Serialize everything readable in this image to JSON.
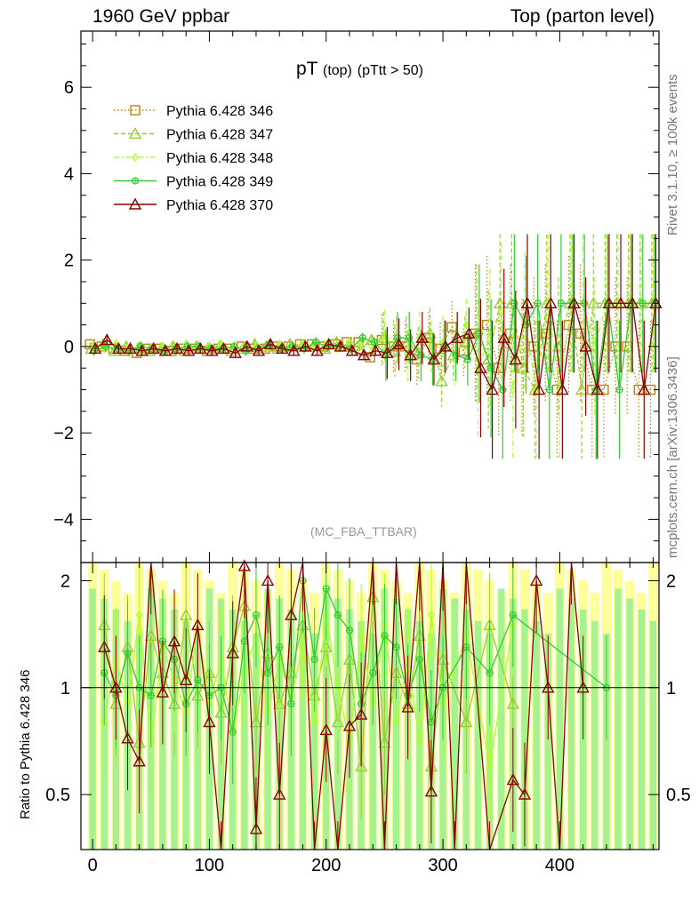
{
  "header": {
    "title_left": "1960 GeV ppbar",
    "title_right": "Top (parton level)",
    "plot_title_main": "pT",
    "plot_title_sub1": "(top)",
    "plot_title_sub2": "(pTtt > 50)",
    "reference_label": "(MC_FBA_TTBAR)",
    "side_label_top": "Rivet 3.1.10, ≥ 100k events",
    "side_label_bottom": "mcplots.cern.ch [arXiv:1306.3436]",
    "ratio_ylabel": "Ratio to Pythia 6.428 346"
  },
  "chart_data": [
    {
      "type": "line",
      "panel": "main",
      "title": "pT (top) (pTtt > 50)",
      "xlabel": "",
      "ylabel": "",
      "xlim": [
        -10,
        485
      ],
      "ylim": [
        -5,
        7.3
      ],
      "yticks": [
        -4,
        -2,
        0,
        2,
        4,
        6
      ],
      "xticks": [
        0,
        100,
        200,
        300,
        400
      ],
      "legend_position": "top-left",
      "series": [
        {
          "name": "Pythia 6.428 346",
          "color": "#b8860b",
          "marker": "square",
          "line": "dotted",
          "x": [
            0,
            10,
            20,
            30,
            40,
            50,
            60,
            70,
            80,
            90,
            100,
            110,
            120,
            130,
            140,
            150,
            160,
            170,
            180,
            190,
            200,
            210,
            220,
            230,
            240,
            250,
            260,
            270,
            280,
            290,
            300,
            310,
            320,
            330,
            340,
            350,
            360,
            370,
            380,
            390,
            400,
            410,
            420,
            430,
            440,
            450,
            460,
            470,
            480
          ],
          "y": [
            0.05,
            0.0,
            -0.05,
            -0.1,
            -0.15,
            -0.05,
            -0.05,
            -0.1,
            -0.05,
            -0.05,
            -0.1,
            -0.05,
            -0.05,
            0.0,
            -0.05,
            -0.05,
            0.0,
            0.0,
            0.05,
            0.05,
            0.0,
            0.05,
            0.1,
            0.1,
            -0.25,
            0.15,
            0.0,
            0.0,
            -0.3,
            0.2,
            -0.05,
            0.45,
            -0.1,
            0.3,
            0.5,
            -0.5,
            0.3,
            -0.5,
            0.0,
            0.3,
            -1.0,
            0.5,
            0.3,
            -1.0,
            -1.0,
            0.0,
            0.0,
            -1.0,
            -1.0
          ]
        },
        {
          "name": "Pythia 6.428 347",
          "color": "#9acd32",
          "marker": "triangle",
          "line": "dashed",
          "x": [
            0,
            10,
            20,
            30,
            40,
            50,
            60,
            70,
            80,
            90,
            100,
            110,
            120,
            130,
            140,
            150,
            160,
            170,
            180,
            190,
            200,
            210,
            220,
            230,
            240,
            250,
            260,
            270,
            280,
            290,
            300,
            310,
            320,
            330,
            340,
            350,
            360,
            370,
            380,
            390,
            400,
            410,
            420,
            430,
            440,
            450,
            460,
            470,
            480
          ],
          "y": [
            -0.05,
            0.05,
            -0.1,
            0.0,
            -0.05,
            -0.1,
            -0.05,
            0.0,
            -0.1,
            0.0,
            -0.05,
            0.0,
            -0.1,
            -0.05,
            0.05,
            0.0,
            -0.05,
            0.05,
            0.0,
            0.0,
            -0.05,
            0.1,
            0.0,
            -0.1,
            0.15,
            0.2,
            -0.1,
            0.1,
            -0.15,
            0.3,
            -0.8,
            -0.2,
            0.1,
            0.3,
            -0.3,
            1.0,
            1.0,
            -0.5,
            -1.0,
            1.0,
            0.0,
            1.0,
            -1.0,
            1.0,
            1.0,
            1.0,
            1.0,
            1.0,
            1.0
          ]
        },
        {
          "name": "Pythia 6.428 348",
          "color": "#adff2f",
          "marker": "diamond",
          "line": "dashdot",
          "x": [
            0,
            10,
            20,
            30,
            40,
            50,
            60,
            70,
            80,
            90,
            100,
            110,
            120,
            130,
            140,
            150,
            160,
            170,
            180,
            190,
            200,
            210,
            220,
            230,
            240,
            250,
            260,
            270,
            280,
            290,
            300,
            310,
            320,
            330,
            340,
            350,
            360,
            370,
            380,
            390,
            400,
            410,
            420,
            430,
            440,
            450,
            460,
            470,
            480
          ],
          "y": [
            0.0,
            -0.05,
            0.05,
            -0.05,
            0.0,
            -0.05,
            0.0,
            -0.1,
            0.05,
            -0.05,
            0.0,
            0.05,
            -0.05,
            0.0,
            0.0,
            -0.05,
            0.05,
            -0.05,
            0.05,
            0.0,
            0.05,
            -0.05,
            0.1,
            0.05,
            -0.05,
            0.25,
            0.1,
            -0.2,
            0.2,
            0.0,
            0.1,
            -0.3,
            0.5,
            -0.5,
            0.2,
            0.8,
            -1.0,
            0.6,
            -1.0,
            1.0,
            -1.0,
            1.0,
            1.0,
            0.0,
            1.0,
            1.0,
            1.0,
            1.0,
            1.0
          ]
        },
        {
          "name": "Pythia 6.428 349",
          "color": "#32cd32",
          "marker": "circle-plus",
          "line": "solid",
          "x": [
            0,
            10,
            20,
            30,
            40,
            50,
            60,
            70,
            80,
            90,
            100,
            110,
            120,
            130,
            140,
            150,
            160,
            170,
            180,
            190,
            200,
            210,
            220,
            230,
            240,
            250,
            260,
            270,
            280,
            290,
            300,
            310,
            320,
            330,
            340,
            350,
            360,
            370,
            380,
            390,
            400,
            410,
            420,
            430,
            440,
            450,
            460,
            470,
            480
          ],
          "y": [
            -0.1,
            0.0,
            -0.05,
            -0.1,
            0.0,
            -0.05,
            -0.1,
            -0.05,
            0.0,
            0.0,
            -0.05,
            -0.05,
            0.0,
            -0.1,
            -0.05,
            0.05,
            -0.05,
            0.0,
            -0.05,
            0.1,
            0.0,
            0.0,
            -0.05,
            0.2,
            0.1,
            -0.2,
            0.2,
            0.2,
            -0.2,
            -0.3,
            0.0,
            -0.2,
            -0.3,
            0.3,
            -0.5,
            -1.0,
            1.0,
            0.5,
            1.0,
            -1.0,
            1.0,
            1.0,
            1.0,
            -1.0,
            1.0,
            -1.0,
            1.0,
            1.0,
            1.0
          ]
        },
        {
          "name": "Pythia 6.428 370",
          "color": "#8b0000",
          "marker": "triangle",
          "line": "solid",
          "x": [
            0,
            10,
            20,
            30,
            40,
            50,
            60,
            70,
            80,
            90,
            100,
            110,
            120,
            130,
            140,
            150,
            160,
            170,
            180,
            190,
            200,
            210,
            220,
            230,
            240,
            250,
            260,
            270,
            280,
            290,
            300,
            310,
            320,
            330,
            340,
            350,
            360,
            370,
            380,
            390,
            400,
            410,
            420,
            430,
            440,
            450,
            460,
            470,
            480
          ],
          "y": [
            -0.05,
            0.15,
            -0.05,
            -0.05,
            -0.1,
            -0.05,
            -0.1,
            -0.05,
            -0.1,
            -0.05,
            -0.1,
            -0.05,
            -0.15,
            0.0,
            -0.1,
            0.05,
            -0.05,
            -0.1,
            0.0,
            -0.1,
            0.05,
            0.0,
            -0.1,
            -0.2,
            -0.1,
            -0.15,
            0.05,
            -0.2,
            0.2,
            -0.3,
            0.0,
            0.2,
            0.3,
            -0.5,
            -1.0,
            0.2,
            -0.3,
            1.0,
            -1.0,
            1.0,
            -1.0,
            1.0,
            0.0,
            -1.0,
            1.0,
            1.0,
            1.0,
            -1.0,
            1.0
          ]
        }
      ]
    },
    {
      "type": "line",
      "panel": "ratio",
      "title": "",
      "xlabel": "",
      "ylabel": "Ratio to Pythia 6.428 346",
      "xlim": [
        -10,
        485
      ],
      "ylim": [
        0.35,
        2.25
      ],
      "yticks": [
        0.5,
        1,
        2
      ],
      "ytick_labels": [
        "0.5",
        "1",
        "2"
      ],
      "xticks": [
        0,
        100,
        200,
        300,
        400
      ],
      "xtick_labels": [
        "0",
        "100",
        "200",
        "300",
        "400"
      ],
      "reference_line": 1,
      "series": [
        {
          "name": "Pythia 6.428 347",
          "color": "#9acd32",
          "x": [
            10,
            20,
            30,
            40,
            50,
            60,
            70,
            80,
            90,
            100,
            110,
            120,
            130,
            140,
            150,
            160,
            170,
            180,
            190,
            200,
            210,
            220,
            230,
            240,
            250,
            260,
            270,
            280,
            290,
            300,
            320,
            340,
            360
          ],
          "y": [
            1.5,
            0.9,
            1.3,
            0.7,
            1.4,
            1.1,
            0.9,
            1.6,
            0.95,
            1.1,
            0.85,
            1.3,
            1.7,
            0.8,
            1.25,
            0.9,
            1.1,
            1.5,
            0.95,
            1.3,
            0.8,
            1.2,
            0.6,
            1.8,
            0.7,
            1.1,
            0.9,
            1.4,
            0.6,
            1.2,
            0.8,
            1.5,
            0.9
          ]
        },
        {
          "name": "Pythia 6.428 348",
          "color": "#adff2f",
          "x": [
            10,
            20,
            30,
            40,
            50,
            60,
            70,
            80,
            90,
            100,
            110,
            120,
            130,
            140,
            150,
            160,
            170,
            180,
            190,
            200,
            210,
            220,
            230,
            240,
            250,
            260,
            270,
            280,
            290,
            300,
            320,
            340,
            360
          ],
          "y": [
            0.8,
            1.2,
            0.9,
            1.6,
            0.7,
            1.3,
            1.05,
            0.85,
            1.5,
            0.9,
            1.2,
            0.75,
            1.1,
            1.4,
            0.85,
            1.2,
            0.95,
            1.3,
            0.8,
            1.6,
            1.0,
            0.7,
            1.4,
            0.9,
            1.5,
            0.8,
            1.2,
            0.7,
            1.6,
            0.9,
            1.4,
            0.6,
            1.5
          ]
        },
        {
          "name": "Pythia 6.428 349",
          "color": "#32cd32",
          "x": [
            10,
            20,
            30,
            40,
            50,
            60,
            70,
            80,
            90,
            100,
            110,
            120,
            130,
            140,
            150,
            160,
            170,
            180,
            190,
            200,
            210,
            220,
            230,
            240,
            250,
            260,
            270,
            280,
            290,
            300,
            320,
            340,
            360,
            440
          ],
          "y": [
            1.1,
            0.95,
            1.25,
            1.0,
            0.95,
            1.35,
            1.2,
            0.9,
            1.05,
            0.95,
            1.0,
            0.75,
            1.35,
            1.6,
            1.1,
            1.3,
            0.9,
            2.0,
            1.2,
            1.9,
            1.6,
            1.45,
            0.9,
            1.1,
            1.4,
            1.3,
            0.95,
            1.2,
            0.8,
            1.0,
            1.3,
            1.1,
            1.6,
            1.0
          ]
        },
        {
          "name": "Pythia 6.428 370",
          "color": "#8b0000",
          "x": [
            10,
            20,
            30,
            40,
            50,
            60,
            70,
            80,
            90,
            100,
            110,
            120,
            130,
            140,
            150,
            160,
            170,
            180,
            190,
            200,
            210,
            220,
            230,
            240,
            250,
            260,
            270,
            280,
            290,
            300,
            310,
            320,
            340,
            360,
            370,
            380,
            390,
            400,
            410,
            420
          ],
          "y": [
            1.3,
            1.0,
            0.72,
            0.62,
            2.25,
            0.97,
            1.35,
            1.05,
            1.5,
            0.8,
            0.3,
            1.25,
            2.2,
            0.4,
            2.0,
            0.5,
            1.6,
            2.3,
            0.3,
            0.76,
            0.3,
            0.78,
            0.84,
            2.4,
            0.3,
            2.4,
            0.88,
            2.3,
            0.51,
            2.3,
            0.3,
            2.4,
            0.3,
            0.55,
            0.5,
            2.0,
            1.0,
            0.3,
            2.4,
            1.0
          ]
        }
      ]
    }
  ]
}
